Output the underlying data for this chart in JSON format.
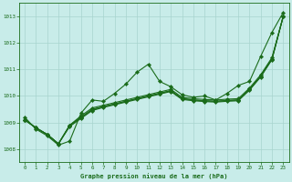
{
  "title": "Graphe pression niveau de la mer (hPa)",
  "background_color": "#c8ece9",
  "grid_color": "#a8d4ce",
  "line_color": "#1a6b1a",
  "xlim": [
    -0.5,
    23.5
  ],
  "ylim": [
    1007.5,
    1013.5
  ],
  "yticks": [
    1008,
    1009,
    1010,
    1011,
    1012,
    1013
  ],
  "xticks": [
    0,
    1,
    2,
    3,
    4,
    5,
    6,
    7,
    8,
    9,
    10,
    11,
    12,
    13,
    14,
    15,
    16,
    17,
    18,
    19,
    20,
    21,
    22,
    23
  ],
  "s1": [
    1009.2,
    1008.75,
    1008.5,
    1008.15,
    1008.3,
    1009.35,
    1009.85,
    1009.8,
    1010.1,
    1010.45,
    1010.9,
    1011.2,
    1010.55,
    1010.35,
    1010.05,
    1009.95,
    1010.0,
    1009.85,
    1010.1,
    1010.4,
    1010.55,
    1011.5,
    1012.4,
    1013.15
  ],
  "s2": [
    1009.1,
    1008.8,
    1008.55,
    1008.2,
    1008.9,
    1009.25,
    1009.55,
    1009.65,
    1009.75,
    1009.85,
    1009.95,
    1010.05,
    1010.15,
    1010.25,
    1009.95,
    1009.9,
    1009.87,
    1009.85,
    1009.88,
    1009.9,
    1010.3,
    1010.8,
    1011.45,
    1013.0
  ],
  "s3": [
    1009.1,
    1008.8,
    1008.55,
    1008.2,
    1008.9,
    1009.2,
    1009.5,
    1009.6,
    1009.7,
    1009.8,
    1009.9,
    1010.0,
    1010.1,
    1010.2,
    1009.9,
    1009.85,
    1009.82,
    1009.8,
    1009.83,
    1009.85,
    1010.25,
    1010.75,
    1011.4,
    1013.0
  ],
  "s4": [
    1009.1,
    1008.8,
    1008.55,
    1008.2,
    1008.85,
    1009.15,
    1009.45,
    1009.57,
    1009.67,
    1009.77,
    1009.87,
    1009.97,
    1010.07,
    1010.17,
    1009.87,
    1009.82,
    1009.79,
    1009.77,
    1009.8,
    1009.82,
    1010.22,
    1010.72,
    1011.37,
    1013.0
  ],
  "s5": [
    1009.1,
    1008.8,
    1008.55,
    1008.2,
    1008.88,
    1009.18,
    1009.48,
    1009.6,
    1009.7,
    1009.8,
    1009.9,
    1010.0,
    1010.1,
    1010.2,
    1009.9,
    1009.85,
    1009.82,
    1009.8,
    1009.83,
    1009.85,
    1010.25,
    1010.75,
    1011.4,
    1013.0
  ]
}
